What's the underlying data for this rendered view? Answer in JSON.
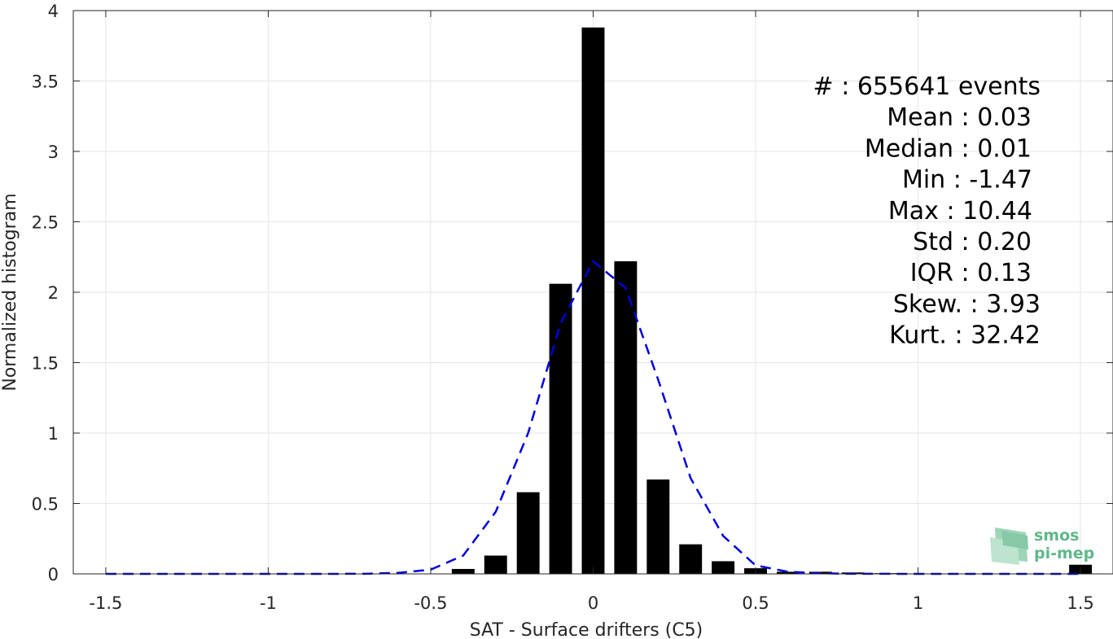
{
  "chart_data": {
    "type": "bar",
    "xlabel": "SAT - Surface drifters (C5)",
    "ylabel": "Normalized histogram",
    "xlim": [
      -1.6,
      1.6
    ],
    "ylim": [
      0,
      4
    ],
    "grid": true,
    "x_ticks": [
      {
        "value": -1.5,
        "label": "-1.5"
      },
      {
        "value": -1,
        "label": "-1"
      },
      {
        "value": -0.5,
        "label": "-0.5"
      },
      {
        "value": 0,
        "label": "0"
      },
      {
        "value": 0.5,
        "label": "0.5"
      },
      {
        "value": 1,
        "label": "1"
      },
      {
        "value": 1.5,
        "label": "1.5"
      }
    ],
    "y_ticks": [
      {
        "value": 0,
        "label": "0"
      },
      {
        "value": 0.5,
        "label": "0.5"
      },
      {
        "value": 1,
        "label": "1"
      },
      {
        "value": 1.5,
        "label": "1.5"
      },
      {
        "value": 2,
        "label": "2"
      },
      {
        "value": 2.5,
        "label": "2.5"
      },
      {
        "value": 3,
        "label": "3"
      },
      {
        "value": 3.5,
        "label": "3.5"
      },
      {
        "value": 4,
        "label": "4"
      }
    ],
    "bar_width": 0.07,
    "bars": {
      "color": "#000000",
      "x": [
        -0.5,
        -0.4,
        -0.3,
        -0.2,
        -0.1,
        0.0,
        0.1,
        0.2,
        0.3,
        0.4,
        0.5,
        0.6,
        0.7,
        0.8,
        0.9,
        1.0,
        1.1,
        1.2,
        1.3,
        1.4,
        1.5
      ],
      "values": [
        0.002,
        0.035,
        0.13,
        0.58,
        2.06,
        3.88,
        2.22,
        0.67,
        0.21,
        0.09,
        0.04,
        0.015,
        0.015,
        0.01,
        0.005,
        0.003,
        0.003,
        0.003,
        0.003,
        0.003,
        0.065
      ]
    },
    "fit_curve": {
      "color": "#0000dd",
      "style": "dashed",
      "x": [
        -1.5,
        -1.2,
        -1.0,
        -0.8,
        -0.7,
        -0.6,
        -0.5,
        -0.4,
        -0.3,
        -0.2,
        -0.1,
        0.0,
        0.1,
        0.2,
        0.3,
        0.4,
        0.5,
        0.6,
        0.7,
        0.8,
        1.0,
        1.2,
        1.5
      ],
      "y": [
        0.0,
        0.0,
        0.0,
        0.0,
        0.001,
        0.007,
        0.03,
        0.13,
        0.44,
        1.0,
        1.78,
        2.22,
        2.03,
        1.38,
        0.68,
        0.27,
        0.06,
        0.015,
        0.004,
        0.001,
        0.0,
        0.0,
        0.0
      ]
    },
    "stats": [
      "#  : 655641 events",
      "Mean : 0.03",
      "Median : 0.01",
      "Min : -1.47",
      "Max : 10.44",
      "Std : 0.20",
      "IQR : 0.13",
      "Skew. : 3.93",
      "Kurt. : 32.42"
    ]
  },
  "logo": {
    "line1": "smos",
    "line2": "pi-mep",
    "color": "#5fb88a"
  }
}
